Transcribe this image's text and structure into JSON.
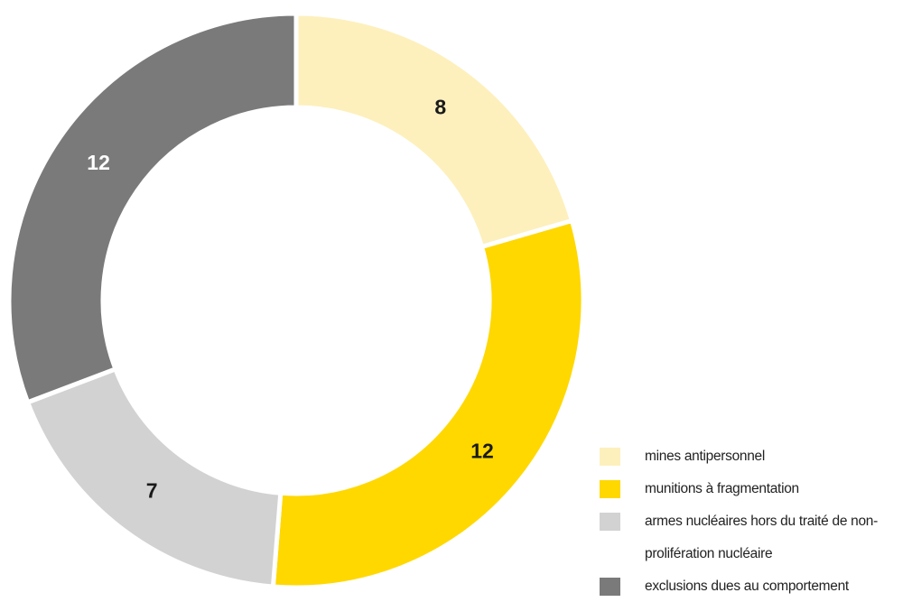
{
  "chart_data": {
    "type": "donut",
    "categories": [
      "mines antipersonnel",
      "munitions à fragmentation",
      "armes nucléaires hors du traité de non-prolifération nucléaire",
      "exclusions dues au comportement"
    ],
    "values": [
      8,
      12,
      7,
      12
    ],
    "colors": [
      "#fdf0bd",
      "#ffd800",
      "#d2d2d2",
      "#7b7a7b"
    ],
    "label_colors": [
      "#1a1a1a",
      "#1a1a1a",
      "#1a1a1a",
      "#ffffff"
    ],
    "legend": "bottom-right"
  }
}
